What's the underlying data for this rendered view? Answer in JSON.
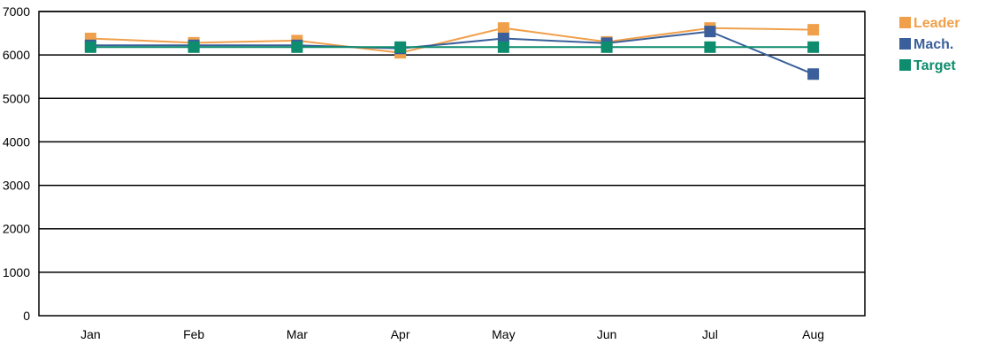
{
  "chart_data": {
    "type": "line",
    "title": "",
    "xlabel": "",
    "ylabel": "",
    "categories": [
      "Jan",
      "Feb",
      "Mar",
      "Apr",
      "May",
      "Jun",
      "Jul",
      "Aug"
    ],
    "ylim": [
      0,
      7000
    ],
    "yticks": [
      0,
      1000,
      2000,
      3000,
      4000,
      5000,
      6000,
      7000
    ],
    "ytick_labels": [
      "0",
      "1000",
      "2000",
      "3000",
      "4000",
      "5000",
      "6000",
      "7000"
    ],
    "grid": "horizontal",
    "legend_position": "top-right",
    "series": [
      {
        "name": "Leader",
        "color": "#F0A04B",
        "values": [
          6380,
          6280,
          6330,
          6050,
          6620,
          6300,
          6620,
          6580
        ]
      },
      {
        "name": "Mach.",
        "color": "#3A5F9A",
        "values": [
          6220,
          6220,
          6220,
          6150,
          6380,
          6270,
          6540,
          5560
        ]
      },
      {
        "name": "Target",
        "color": "#0E8C6E",
        "values": [
          6180,
          6180,
          6180,
          6180,
          6180,
          6180,
          6180,
          6180
        ]
      }
    ]
  }
}
